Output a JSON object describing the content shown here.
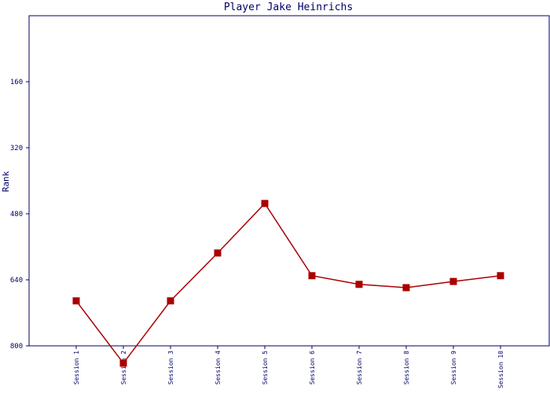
{
  "chart_data": {
    "type": "line",
    "title": "Player Jake Heinrichs",
    "y_label": "Rank",
    "categories": [
      "Session 1",
      "Session 2",
      "Session 3",
      "Session 4",
      "Session 5",
      "Session 6",
      "Session 7",
      "Session 8",
      "Session 9",
      "Session 10"
    ],
    "series": [
      {
        "name": "Rank",
        "color": "#aa0000",
        "values": [
          691,
          842,
          691,
          575,
          455,
          630,
          651,
          659,
          644,
          630
        ]
      }
    ],
    "ylim": [
      800,
      0
    ],
    "yticks": [
      160,
      320,
      480,
      640,
      800
    ]
  }
}
